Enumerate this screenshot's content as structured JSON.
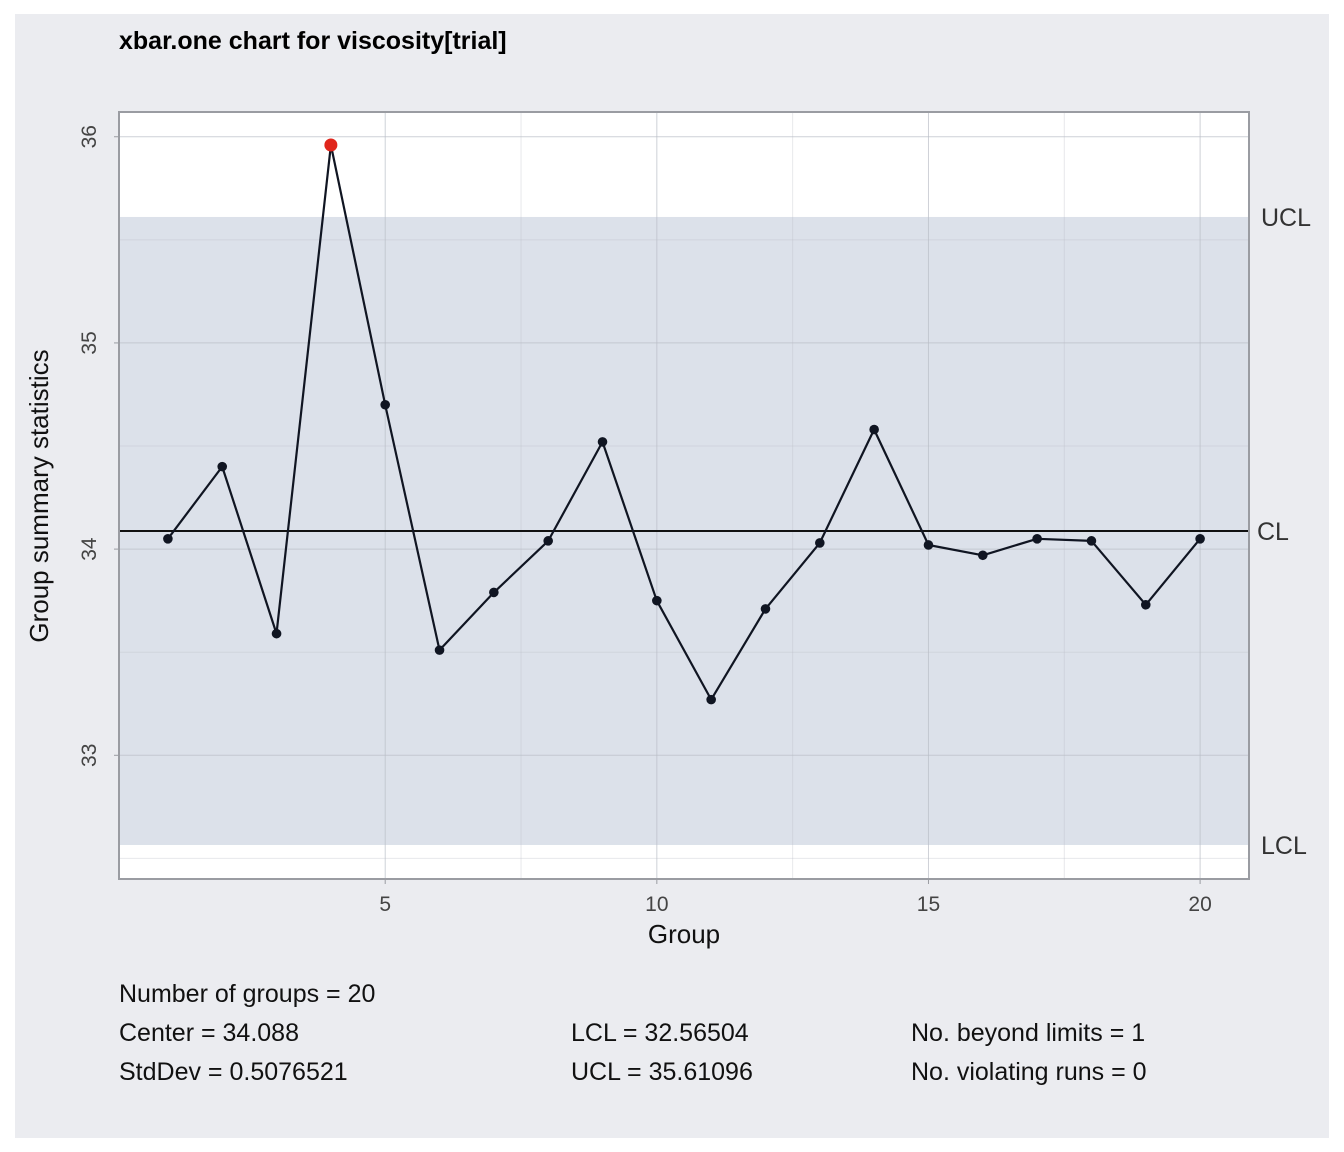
{
  "chart_data": {
    "type": "line",
    "title": "xbar.one chart for viscosity[trial]",
    "xlabel": "Group",
    "ylabel": "Group summary statistics",
    "xlim": [
      0.1,
      20.9
    ],
    "ylim": [
      32.4,
      36.12
    ],
    "x_ticks": [
      5,
      10,
      15,
      20
    ],
    "x_tick_labels": [
      "5",
      "10",
      "15",
      "20"
    ],
    "y_ticks": [
      33,
      34,
      35,
      36
    ],
    "y_tick_labels": [
      "33",
      "34",
      "35",
      "36"
    ],
    "grid": true,
    "x": [
      1,
      2,
      3,
      4,
      5,
      6,
      7,
      8,
      9,
      10,
      11,
      12,
      13,
      14,
      15,
      16,
      17,
      18,
      19,
      20
    ],
    "series": [
      {
        "values": [
          34.05,
          34.4,
          33.59,
          35.96,
          34.7,
          33.51,
          33.79,
          34.04,
          34.52,
          33.75,
          33.27,
          33.71,
          34.03,
          34.58,
          34.02,
          33.97,
          34.05,
          34.04,
          33.73,
          34.05
        ]
      }
    ],
    "out_of_control_indices": [
      3
    ],
    "center_line": 34.088,
    "lcl": 32.56504,
    "ucl": 35.61096,
    "limit_labels": {
      "ucl": "UCL",
      "cl": "CL",
      "lcl": "LCL"
    },
    "colors": {
      "background": "#ebecf0",
      "plot_background": "#ffffff",
      "control_band": "#dce1ea",
      "line": "#101522",
      "out_of_control": "#e0261c"
    }
  },
  "stats": {
    "groups": "Number of groups = 20",
    "center": "Center = 34.088",
    "stddev": "StdDev = 0.5076521",
    "lcl": "LCL = 32.56504",
    "ucl": "UCL = 35.61096",
    "beyond": "No. beyond limits = 1",
    "violating": "No. violating runs = 0"
  }
}
